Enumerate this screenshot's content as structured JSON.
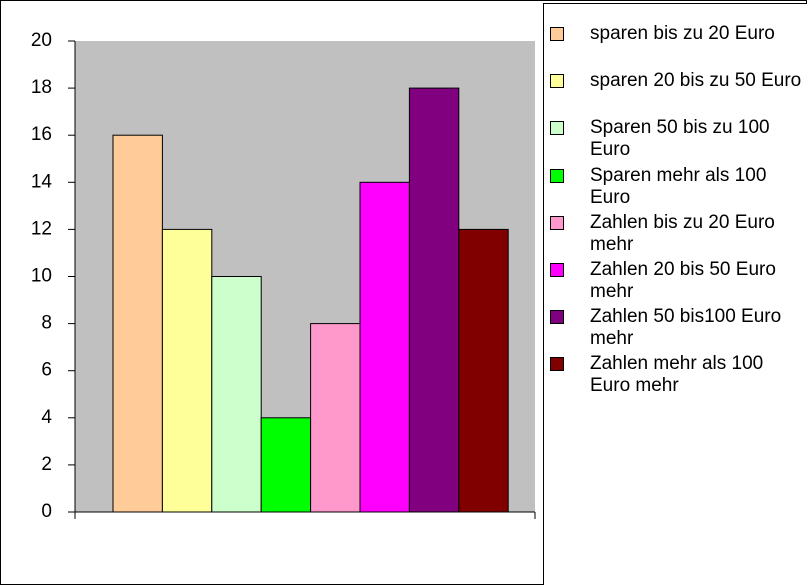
{
  "chart_data": {
    "type": "bar",
    "categories": [
      null
    ],
    "series": [
      {
        "name": "sparen bis zu 20 Euro",
        "color": "#ffcc99",
        "values": [
          16
        ]
      },
      {
        "name": "sparen 20 bis zu 50 Euro",
        "color": "#ffff99",
        "values": [
          12
        ]
      },
      {
        "name": "Sparen 50 bis zu 100 Euro",
        "color": "#ccffcc",
        "values": [
          10
        ]
      },
      {
        "name": "Sparen mehr als 100 Euro",
        "color": "#00ff00",
        "values": [
          4
        ]
      },
      {
        "name": "Zahlen bis zu 20 Euro mehr",
        "color": "#ff99cc",
        "values": [
          8
        ]
      },
      {
        "name": "Zahlen 20 bis 50 Euro mehr",
        "color": "#ff00ff",
        "values": [
          14
        ]
      },
      {
        "name": "Zahlen 50 bis100 Euro mehr",
        "color": "#800080",
        "values": [
          18
        ]
      },
      {
        "name": "Zahlen mehr als 100 Euro mehr",
        "color": "#800000",
        "values": [
          12
        ]
      }
    ],
    "ylim": [
      0,
      20
    ],
    "yticks": [
      0,
      2,
      4,
      6,
      8,
      10,
      12,
      14,
      16,
      18,
      20
    ],
    "grid": false,
    "legend": "right",
    "plot_background": "#c0c0c0"
  }
}
